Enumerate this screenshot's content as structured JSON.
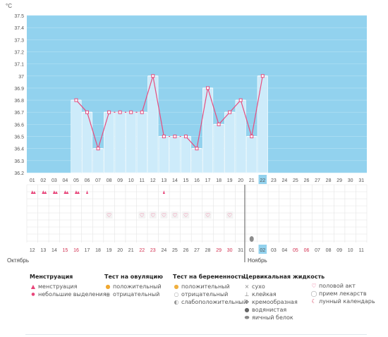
{
  "chart_data": {
    "type": "bar",
    "unit_label": "°C",
    "ylim": [
      36.2,
      37.5
    ],
    "y_ticks": [
      "37.5",
      "37.4",
      "37.3",
      "37.2",
      "37.1",
      "37",
      "36.9",
      "36.8",
      "36.7",
      "36.6",
      "36.5",
      "36.4",
      "36.3",
      "36.2"
    ],
    "days_top": [
      "01",
      "02",
      "03",
      "04",
      "05",
      "06",
      "07",
      "08",
      "09",
      "10",
      "11",
      "12",
      "13",
      "14",
      "15",
      "16",
      "17",
      "18",
      "19",
      "20",
      "21",
      "22",
      "23",
      "24",
      "25",
      "26",
      "27",
      "28",
      "29",
      "30",
      "31"
    ],
    "highlight_index": 21,
    "temperature_values": [
      null,
      null,
      null,
      null,
      36.8,
      36.7,
      36.4,
      36.7,
      36.7,
      36.7,
      36.7,
      37.0,
      36.5,
      36.5,
      36.5,
      36.4,
      36.9,
      36.6,
      36.7,
      36.8,
      36.5,
      37.0,
      null,
      null,
      null,
      null,
      null,
      null,
      null,
      null,
      null
    ],
    "menstruation_days": [
      0,
      1,
      2,
      3,
      4
    ],
    "small_discharge_days": [
      5,
      12
    ],
    "intercourse_days": [
      7,
      10,
      11,
      12,
      13,
      14,
      16,
      18
    ],
    "egg_white_days": [
      20
    ],
    "calendar_dates": [
      "12",
      "13",
      "14",
      "15",
      "16",
      "17",
      "18",
      "19",
      "20",
      "21",
      "22",
      "23",
      "24",
      "25",
      "26",
      "27",
      "28",
      "29",
      "30",
      "31",
      "01",
      "02",
      "03",
      "04",
      "05",
      "06",
      "07",
      "08",
      "09",
      "10",
      "11"
    ],
    "red_date_indices": [
      3,
      4,
      10,
      11,
      17,
      18,
      24,
      25
    ],
    "month_left": "Октябрь",
    "month_right": "Ноябрь"
  },
  "legend": {
    "menstruation": {
      "title": "Менструация",
      "items": [
        "менструация",
        "небольшие выделения"
      ]
    },
    "ovulation": {
      "title": "Тест на овуляцию",
      "items": [
        "положительный",
        "отрицательный"
      ]
    },
    "pregnancy": {
      "title": "Тест на беременность",
      "items": [
        "положительный",
        "отрицательный",
        "слабоположительный"
      ]
    },
    "cervical": {
      "title": "Цервикальная жидкость",
      "items": [
        "сухо",
        "клейкая",
        "кремообразная",
        "водянистая",
        "яичный белок"
      ]
    },
    "other": {
      "items": [
        "половой акт",
        "прием лекарств",
        "лунный календарь"
      ]
    }
  },
  "colors": {
    "plot_bg": "#92d2ee",
    "bar_fill": "#cdebfa",
    "line": "#e64d7f",
    "accent_pink": "#e8457a",
    "date_red": "#d23050",
    "grid": "#e4e4e4"
  }
}
